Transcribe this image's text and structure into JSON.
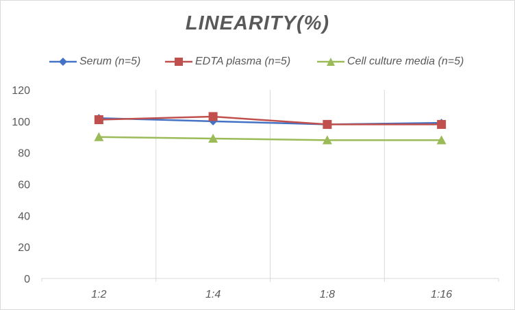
{
  "chart_data": {
    "type": "line",
    "title": "LINEARITY(%)",
    "xlabel": "",
    "ylabel": "",
    "categories": [
      "1:2",
      "1:4",
      "1:8",
      "1:16"
    ],
    "ylim": [
      0,
      120
    ],
    "yticks": [
      0,
      20,
      40,
      60,
      80,
      100,
      120
    ],
    "grid": "vertical",
    "legend_position": "top",
    "series": [
      {
        "name": "Serum (n=5)",
        "values": [
          102,
          100,
          98,
          99
        ],
        "color": "#4472c4",
        "marker": "diamond"
      },
      {
        "name": "EDTA plasma (n=5)",
        "values": [
          101,
          103,
          98,
          98
        ],
        "color": "#c0504d",
        "marker": "square"
      },
      {
        "name": "Cell culture media (n=5)",
        "values": [
          90,
          89,
          88,
          88
        ],
        "color": "#9bbb59",
        "marker": "triangle"
      }
    ]
  }
}
